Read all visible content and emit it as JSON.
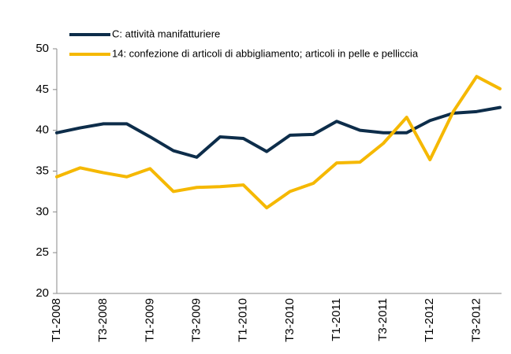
{
  "chart_data": {
    "type": "line",
    "categories": [
      "T1-2008",
      null,
      "T3-2008",
      null,
      "T1-2009",
      null,
      "T3-2009",
      null,
      "T1-2010",
      null,
      "T3-2010",
      null,
      "T1-2011",
      null,
      "T3-2011",
      null,
      "T1-2012",
      null,
      "T3-2012",
      null
    ],
    "series": [
      {
        "name": "C: attività manifatturiere",
        "color": "#0d2d4a",
        "values": [
          39.7,
          40.3,
          40.8,
          40.8,
          39.2,
          37.5,
          36.7,
          39.2,
          39.0,
          37.4,
          39.4,
          39.5,
          41.1,
          40.0,
          39.7,
          39.7,
          41.2,
          42.1,
          42.3,
          42.8
        ]
      },
      {
        "name": "14: confezione di articoli di abbigliamento; articoli in pelle e pelliccia",
        "color": "#f5b800",
        "values": [
          34.3,
          35.4,
          34.8,
          34.3,
          35.3,
          32.5,
          33.0,
          33.1,
          33.3,
          30.5,
          32.5,
          33.5,
          36.0,
          36.1,
          38.4,
          41.6,
          36.4,
          42.3,
          46.6,
          45.1
        ]
      }
    ],
    "ylim": [
      20,
      50
    ],
    "yticks": [
      20,
      25,
      30,
      35,
      40,
      45,
      50
    ],
    "grid": false,
    "legend": "top-left"
  }
}
